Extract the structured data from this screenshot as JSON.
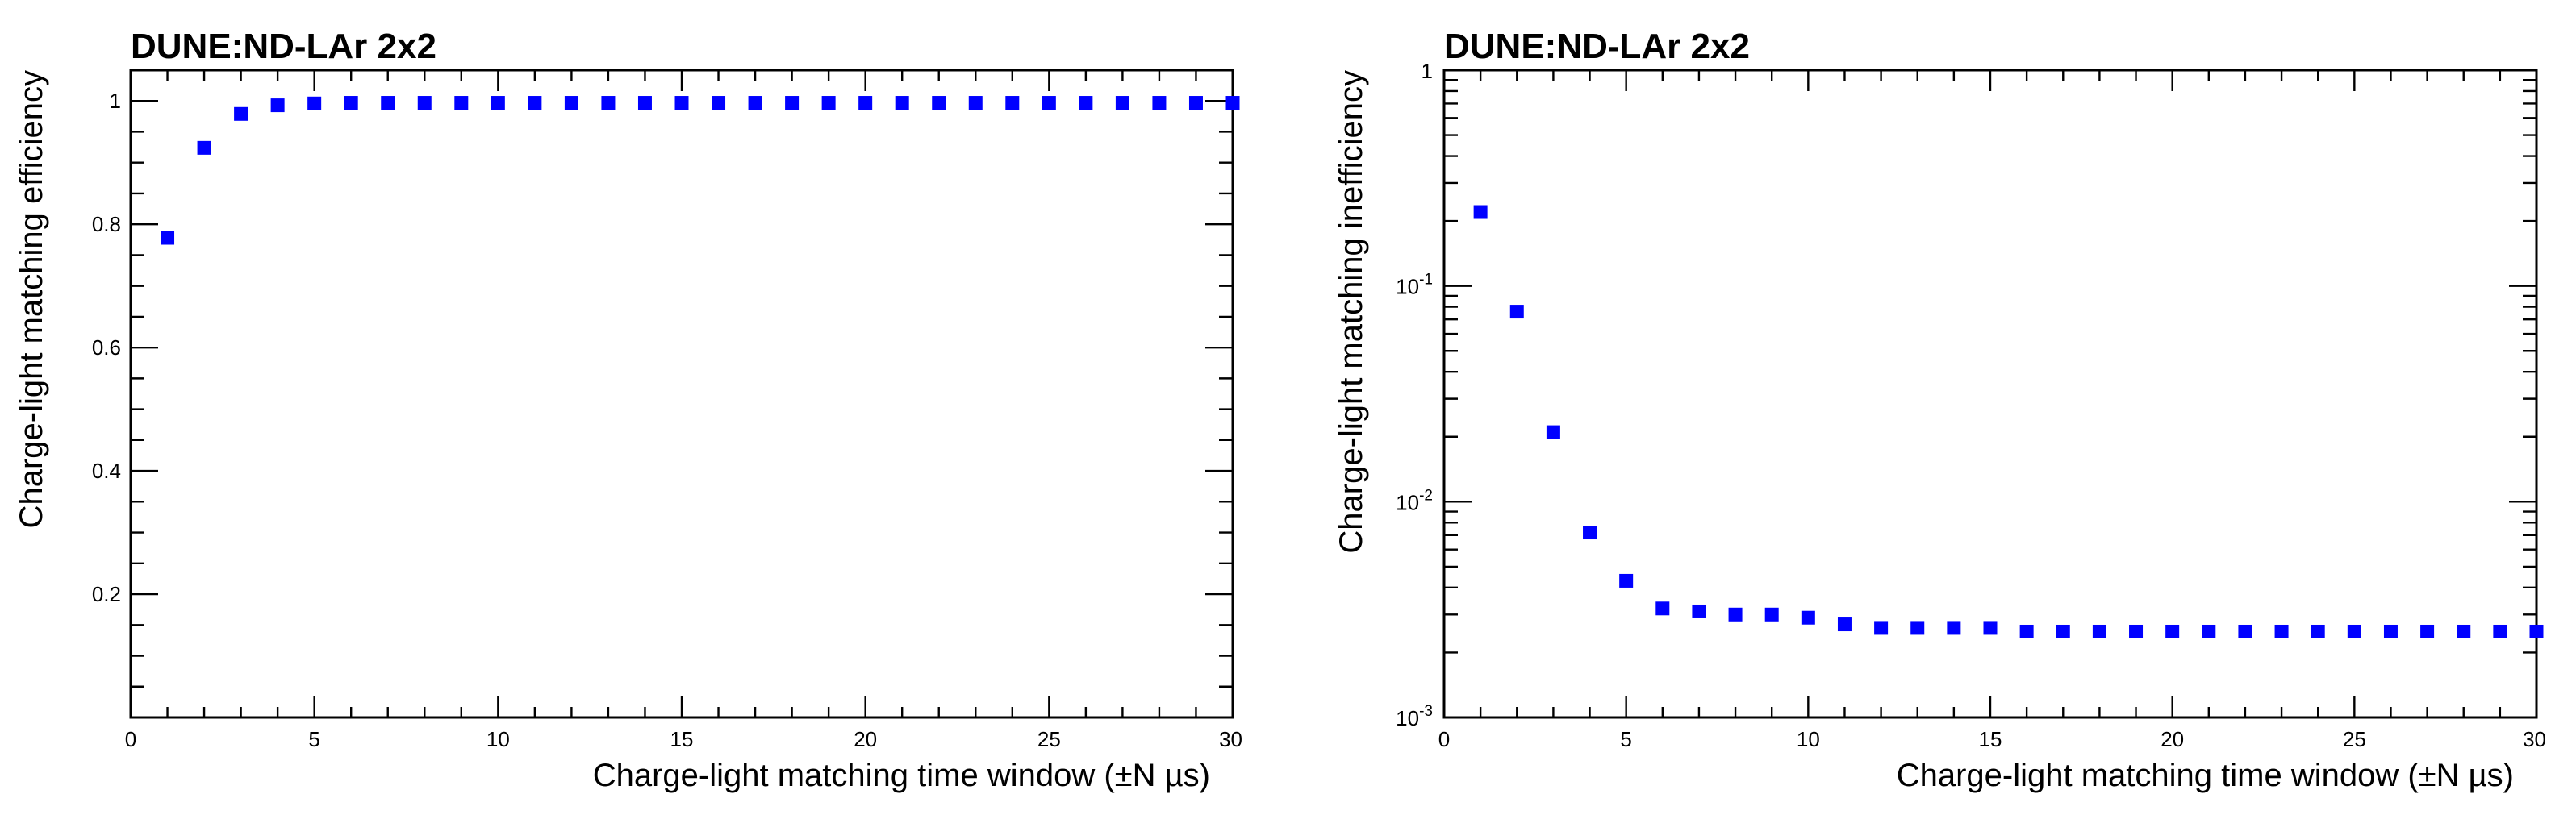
{
  "chart_data": [
    {
      "type": "scatter",
      "title": "DUNE:ND-LAr 2x2",
      "xlabel": "Charge-light matching time window (±N µs)",
      "ylabel": "Charge-light matching efficiency",
      "xlim": [
        0,
        30
      ],
      "ylim": [
        0,
        1.05
      ],
      "yscale": "linear",
      "x_ticks": [
        0,
        5,
        10,
        15,
        20,
        25,
        30
      ],
      "y_ticks": [
        0.2,
        0.4,
        0.6,
        0.8,
        1
      ],
      "x_tick_labels": [
        "0",
        "5",
        "10",
        "15",
        "20",
        "25",
        "30"
      ],
      "y_tick_labels": [
        "0.2",
        "0.4",
        "0.6",
        "0.8",
        "1"
      ],
      "marker": "square",
      "color": "#0000ff",
      "grid": false,
      "series": [
        {
          "x": [
            1,
            2,
            3,
            4,
            5,
            6,
            7,
            8,
            9,
            10,
            11,
            12,
            13,
            14,
            15,
            16,
            17,
            18,
            19,
            20,
            21,
            22,
            23,
            24,
            25,
            26,
            27,
            28,
            29,
            30
          ],
          "y": [
            0.778,
            0.924,
            0.979,
            0.993,
            0.996,
            0.997,
            0.997,
            0.997,
            0.997,
            0.997,
            0.997,
            0.997,
            0.997,
            0.997,
            0.997,
            0.997,
            0.997,
            0.997,
            0.997,
            0.997,
            0.997,
            0.997,
            0.997,
            0.997,
            0.997,
            0.997,
            0.997,
            0.997,
            0.997,
            0.997
          ]
        }
      ]
    },
    {
      "type": "scatter",
      "title": "DUNE:ND-LAr 2x2",
      "xlabel": "Charge-light matching time window (±N µs)",
      "ylabel": "Charge-light matching inefficiency",
      "xlim": [
        0,
        30
      ],
      "ylim": [
        0.001,
        1
      ],
      "yscale": "log",
      "x_ticks": [
        0,
        5,
        10,
        15,
        20,
        25,
        30
      ],
      "x_tick_labels": [
        "0",
        "5",
        "10",
        "15",
        "20",
        "25",
        "30"
      ],
      "y_ticks": [
        0.001,
        0.01,
        0.1,
        1
      ],
      "y_tick_labels": [
        {
          "base": "10",
          "exp": "-3"
        },
        {
          "base": "10",
          "exp": "-2"
        },
        {
          "base": "10",
          "exp": "-1"
        },
        {
          "base": "1",
          "exp": ""
        }
      ],
      "marker": "square",
      "color": "#0000ff",
      "grid": false,
      "series": [
        {
          "x": [
            1,
            2,
            3,
            4,
            5,
            6,
            7,
            8,
            9,
            10,
            11,
            12,
            13,
            14,
            15,
            16,
            17,
            18,
            19,
            20,
            21,
            22,
            23,
            24,
            25,
            26,
            27,
            28,
            29,
            30
          ],
          "y": [
            0.22,
            0.076,
            0.021,
            0.0072,
            0.0043,
            0.0032,
            0.0031,
            0.003,
            0.003,
            0.0029,
            0.0027,
            0.0026,
            0.0026,
            0.0026,
            0.0026,
            0.0025,
            0.0025,
            0.0025,
            0.0025,
            0.0025,
            0.0025,
            0.0025,
            0.0025,
            0.0025,
            0.0025,
            0.0025,
            0.0025,
            0.0025,
            0.0025,
            0.0025
          ]
        }
      ]
    }
  ]
}
